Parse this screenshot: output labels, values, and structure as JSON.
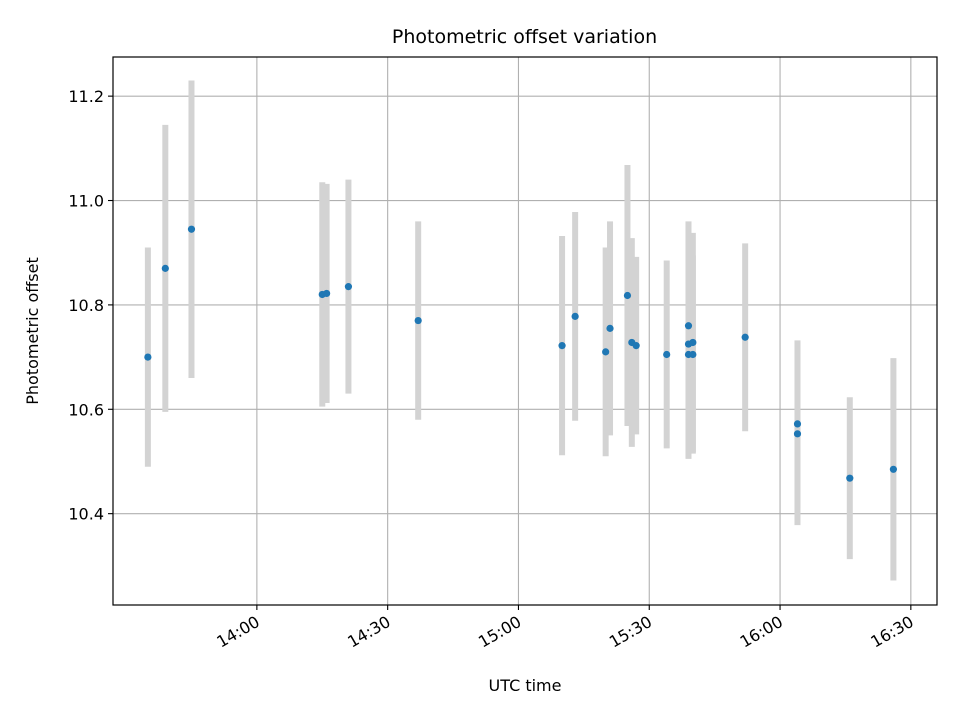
{
  "chart_data": {
    "type": "scatter",
    "title": "Photometric offset variation",
    "xlabel": "UTC time",
    "ylabel": "Photometric offset",
    "xlim": [
      "13:27",
      "16:36"
    ],
    "ylim": [
      10.225,
      11.275
    ],
    "x_ticks": [
      "14:00",
      "14:30",
      "15:00",
      "15:30",
      "16:00",
      "16:30"
    ],
    "y_ticks": [
      "10.4",
      "10.6",
      "10.8",
      "11.0",
      "11.2"
    ],
    "grid": true,
    "colors": {
      "point": "#1f77b4",
      "error_bar": "#d3d3d3",
      "grid": "#b0b0b0"
    },
    "points": [
      {
        "x": "13:35",
        "y": 10.7,
        "err": 0.21
      },
      {
        "x": "13:39",
        "y": 10.87,
        "err": 0.275
      },
      {
        "x": "13:45",
        "y": 10.945,
        "err": 0.285
      },
      {
        "x": "14:15",
        "y": 10.82,
        "err": 0.215
      },
      {
        "x": "14:16",
        "y": 10.822,
        "err": 0.21
      },
      {
        "x": "14:21",
        "y": 10.835,
        "err": 0.205
      },
      {
        "x": "14:37",
        "y": 10.77,
        "err": 0.19
      },
      {
        "x": "15:10",
        "y": 10.722,
        "err": 0.21
      },
      {
        "x": "15:13",
        "y": 10.778,
        "err": 0.2
      },
      {
        "x": "15:20",
        "y": 10.71,
        "err": 0.2
      },
      {
        "x": "15:21",
        "y": 10.755,
        "err": 0.205
      },
      {
        "x": "15:25",
        "y": 10.818,
        "err": 0.25
      },
      {
        "x": "15:26",
        "y": 10.728,
        "err": 0.2
      },
      {
        "x": "15:27",
        "y": 10.722,
        "err": 0.17
      },
      {
        "x": "15:34",
        "y": 10.705,
        "err": 0.18
      },
      {
        "x": "15:39",
        "y": 10.76,
        "err": 0.2
      },
      {
        "x": "15:39",
        "y": 10.725,
        "err": 0.2
      },
      {
        "x": "15:39",
        "y": 10.705,
        "err": 0.2
      },
      {
        "x": "15:40",
        "y": 10.705,
        "err": 0.19
      },
      {
        "x": "15:40",
        "y": 10.728,
        "err": 0.21
      },
      {
        "x": "15:52",
        "y": 10.738,
        "err": 0.18
      },
      {
        "x": "16:04",
        "y": 10.553,
        "err": 0.175
      },
      {
        "x": "16:04",
        "y": 10.572,
        "err": 0.16
      },
      {
        "x": "16:16",
        "y": 10.468,
        "err": 0.155
      },
      {
        "x": "16:26",
        "y": 10.485,
        "err": 0.213
      }
    ]
  }
}
